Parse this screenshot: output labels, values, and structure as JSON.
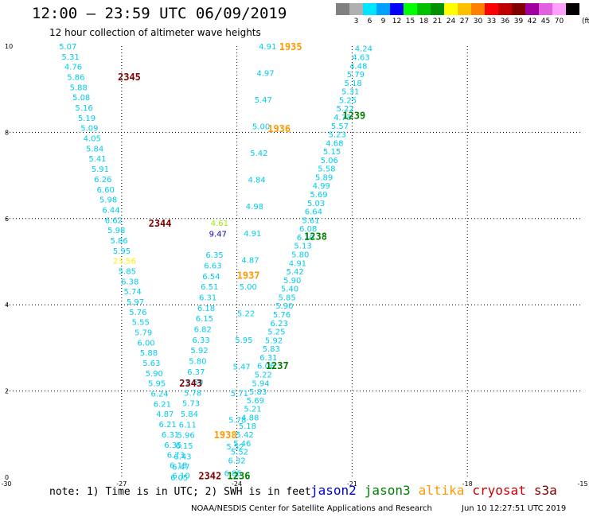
{
  "header": {
    "title": "12:00 – 23:59 UTC 06/09/2019",
    "subtitle": "12 hour collection of altimeter wave heights"
  },
  "colorbar": {
    "unit": "(ft)",
    "items": [
      {
        "label": "",
        "color": "#808080"
      },
      {
        "label": "3",
        "color": "#b0b0b0"
      },
      {
        "label": "6",
        "color": "#00e5ff"
      },
      {
        "label": "9",
        "color": "#00a0ff"
      },
      {
        "label": "12",
        "color": "#0000ff"
      },
      {
        "label": "15",
        "color": "#00ff00"
      },
      {
        "label": "18",
        "color": "#00c000"
      },
      {
        "label": "21",
        "color": "#009000"
      },
      {
        "label": "24",
        "color": "#ffff00"
      },
      {
        "label": "27",
        "color": "#ffc000"
      },
      {
        "label": "30",
        "color": "#ff8000"
      },
      {
        "label": "33",
        "color": "#ff0000"
      },
      {
        "label": "36",
        "color": "#c00000"
      },
      {
        "label": "39",
        "color": "#800000"
      },
      {
        "label": "42",
        "color": "#a000a0"
      },
      {
        "label": "45",
        "color": "#e060e0"
      },
      {
        "label": "70",
        "color": "#ffa0ff"
      },
      {
        "label": "",
        "color": "#000000"
      }
    ]
  },
  "note": "note: 1) Time is in UTC; 2) SWH is in feet",
  "satellites": [
    {
      "name": "jason2",
      "color": "#0000cc"
    },
    {
      "name": "jason3",
      "color": "#008000"
    },
    {
      "name": "altika",
      "color": "#ff9900"
    },
    {
      "name": "cryosat",
      "color": "#cc0000"
    },
    {
      "name": "s3a",
      "color": "#800000"
    }
  ],
  "footer": "NOAA/NESDIS Center for Satellite Applications and Research",
  "footer_time": "Jun 10 12:27:51 UTC 2019",
  "chart_data": {
    "type": "scatter",
    "xlim": [
      -30,
      -15
    ],
    "ylim": [
      0,
      10
    ],
    "xticks": [
      -30,
      -27,
      -24,
      -21,
      -18,
      -15
    ],
    "yticks": [
      0,
      2,
      4,
      6,
      8,
      10
    ],
    "grid": true,
    "colors": {
      "swh_low": "#00ccee",
      "swh_mid": "#99ee00",
      "swh_yellow": "#ffee00",
      "swh_blue": "#0000cc",
      "time_s3a": "#800000",
      "time_jason3": "#008000",
      "time_altika": "#ff9900"
    },
    "tracks": [
      {
        "x0": -28.4,
        "y0": 10.0,
        "x1": -25.45,
        "y1": 0.05,
        "color": "#00ccee",
        "values": [
          "5.07",
          "5.31",
          "4.76",
          "5.86",
          "5.88",
          "5.08",
          "5.16",
          "5.19",
          "5.09",
          "4.05",
          "5.84",
          "5.41",
          "5.91",
          "6.26",
          "6.60",
          "5.98",
          "6.44",
          "6.62",
          "5.98",
          "5.86",
          "5.95",
          "23.56",
          "5.85",
          "6.38",
          "5.74",
          "5.97",
          "5.76",
          "5.55",
          "5.79",
          "6.00",
          "5.88",
          "5.63",
          "5.90",
          "5.95",
          "6.24",
          "6.21",
          "4.87",
          "6.21",
          "6.31",
          "6.35",
          "6.73",
          "6.18",
          "6.10"
        ],
        "highlights": {
          "21": "#ffee00"
        }
      },
      {
        "x0": -24.45,
        "y0": 5.9,
        "x1": -25.5,
        "y1": 0.0,
        "color": "#00ccee",
        "values": [
          "4.61",
          "9.47",
          "",
          "6.35",
          "6.63",
          "6.54",
          "6.51",
          "6.31",
          "6.18",
          "6.15",
          "6.82",
          "6.33",
          "5.92",
          "5.80",
          "6.37",
          "5.69",
          "5.78",
          "5.73",
          "5.84",
          "6.11",
          "5.96",
          "6.15",
          "6.43",
          "6.47",
          "6.05"
        ],
        "highlights": {
          "0": "#99ee00",
          "1": "#0000cc"
        }
      },
      {
        "x0": -23.2,
        "y0": 10.0,
        "x1": -24.1,
        "y1": 0.1,
        "color": "#00ccee",
        "values": [
          "4.91",
          "4.97",
          "5.47",
          "5.00",
          "5.42",
          "4.84",
          "4.98",
          "4.91",
          "4.87",
          "5.00",
          "5.22",
          "5.95",
          "5.47",
          "5.71",
          "5.78",
          "5.52",
          "6.85"
        ],
        "highlights": {}
      },
      {
        "x0": -20.7,
        "y0": 9.95,
        "x1": -24.0,
        "y1": 0.4,
        "color": "#00ccee",
        "values": [
          "4.24",
          "4.63",
          "4.48",
          "5.79",
          "5.18",
          "5.31",
          "5.25",
          "5.22",
          "4.73",
          "5.57",
          "5.23",
          "4.68",
          "5.15",
          "5.06",
          "5.58",
          "5.89",
          "4.99",
          "5.69",
          "5.03",
          "6.64",
          "5.61",
          "6.08",
          "6.10",
          "5.13",
          "5.80",
          "4.91",
          "5.42",
          "5.90",
          "5.40",
          "5.85",
          "5.90",
          "5.76",
          "6.23",
          "5.25",
          "5.92",
          "5.83",
          "6.31",
          "6.06",
          "5.22",
          "5.94",
          "5.83",
          "5.69",
          "5.21",
          "4.88",
          "5.18",
          "5.42",
          "5.46",
          "5.52",
          "6.32"
        ],
        "highlights": {}
      }
    ],
    "time_labels": [
      {
        "text": "2345",
        "x": -26.8,
        "y": 9.3,
        "color": "#800000"
      },
      {
        "text": "2344",
        "x": -26.0,
        "y": 5.9,
        "color": "#800000"
      },
      {
        "text": "2343",
        "x": -25.2,
        "y": 2.2,
        "color": "#800000"
      },
      {
        "text": "2342",
        "x": -24.7,
        "y": 0.05,
        "color": "#800000"
      },
      {
        "text": "1236",
        "x": -23.95,
        "y": 0.05,
        "color": "#008000"
      },
      {
        "text": "1237",
        "x": -22.95,
        "y": 2.6,
        "color": "#008000"
      },
      {
        "text": "1238",
        "x": -21.95,
        "y": 5.6,
        "color": "#008000"
      },
      {
        "text": "1239",
        "x": -20.95,
        "y": 8.4,
        "color": "#008000"
      },
      {
        "text": "1935",
        "x": -22.6,
        "y": 10.0,
        "color": "#ff9900"
      },
      {
        "text": "1936",
        "x": -22.9,
        "y": 8.1,
        "color": "#ff9900"
      },
      {
        "text": "1937",
        "x": -23.7,
        "y": 4.7,
        "color": "#ff9900"
      },
      {
        "text": "1938",
        "x": -24.3,
        "y": 1.0,
        "color": "#ff9900"
      }
    ]
  }
}
